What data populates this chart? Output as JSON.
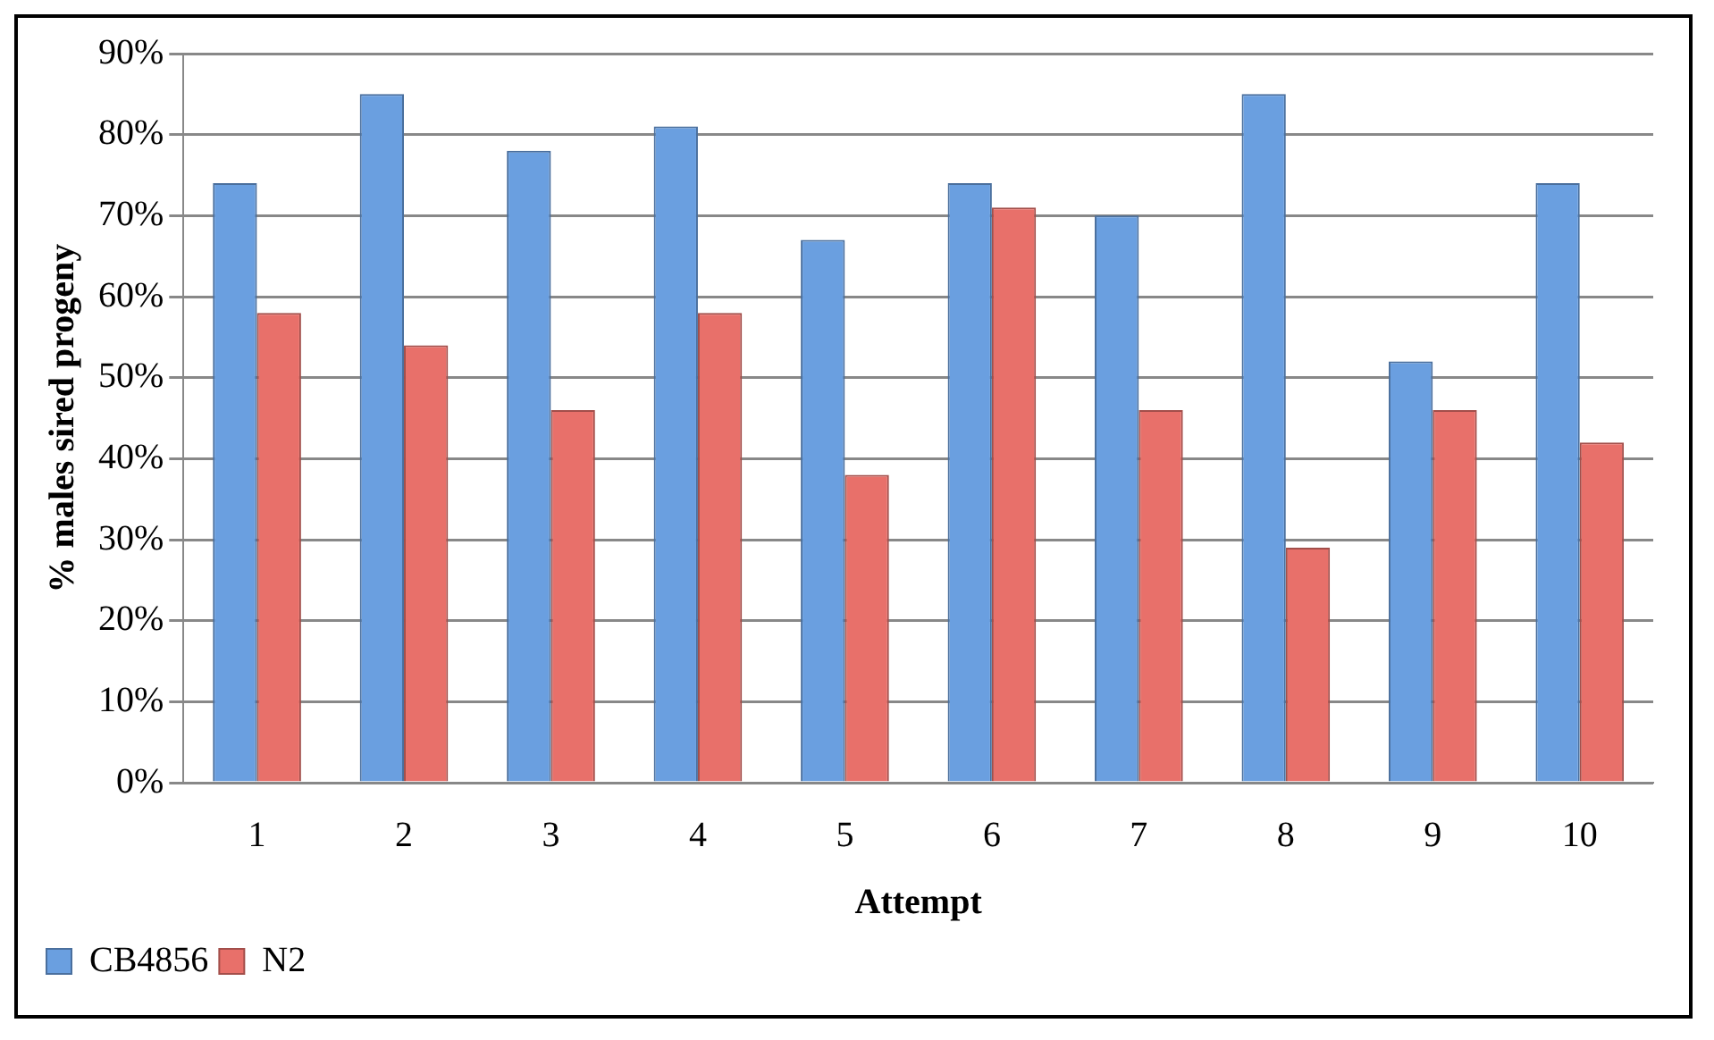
{
  "chart_data": {
    "type": "bar",
    "xlabel": "Attempt",
    "ylabel": "% males sired progeny",
    "categories": [
      "1",
      "2",
      "3",
      "4",
      "5",
      "6",
      "7",
      "8",
      "9",
      "10"
    ],
    "series": [
      {
        "name": "CB4856",
        "color": "#6a9fe0",
        "values": [
          0.74,
          0.85,
          0.78,
          0.81,
          0.67,
          0.74,
          0.7,
          0.85,
          0.52,
          0.74
        ]
      },
      {
        "name": "N2",
        "color": "#e8706a",
        "values": [
          0.58,
          0.54,
          0.46,
          0.58,
          0.38,
          0.71,
          0.46,
          0.29,
          0.46,
          0.42
        ]
      }
    ],
    "ylim": [
      0,
      0.9
    ],
    "yticks": [
      {
        "value": 0,
        "label": "0%"
      },
      {
        "value": 0.1,
        "label": "10%"
      },
      {
        "value": 0.2,
        "label": "20%"
      },
      {
        "value": 0.3,
        "label": "30%"
      },
      {
        "value": 0.4,
        "label": "40%"
      },
      {
        "value": 0.5,
        "label": "50%"
      },
      {
        "value": 0.6,
        "label": "60%"
      },
      {
        "value": 0.7,
        "label": "70%"
      },
      {
        "value": 0.8,
        "label": "80%"
      },
      {
        "value": 0.9,
        "label": "90%"
      }
    ],
    "grid": "y",
    "legend": "bottom left"
  }
}
